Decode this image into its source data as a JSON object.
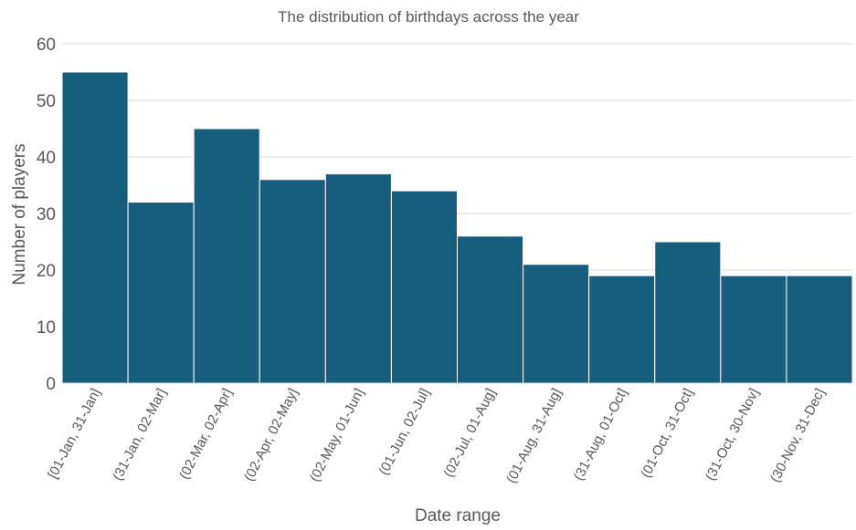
{
  "chart_data": {
    "type": "bar",
    "title": "The distribution of birthdays across the year",
    "xlabel": "Date range",
    "ylabel": "Number of players",
    "categories": [
      "[01-Jan, 31-Jan]",
      "(31-Jan, 02-Mar]",
      "(02-Mar, 02-Apr]",
      "(02-Apr, 02-May]",
      "(02-May, 01-Jun]",
      "(01-Jun, 02-Jul]",
      "(02-Jul, 01-Aug]",
      "(01-Aug, 31-Aug]",
      "(31-Aug, 01-Oct]",
      "(01-Oct, 31-Oct]",
      "(31-Oct, 30-Nov]",
      "(30-Nov, 31-Dec]"
    ],
    "values": [
      55,
      32,
      45,
      36,
      37,
      34,
      26,
      21,
      19,
      25,
      19,
      19
    ],
    "ylim": [
      0,
      60
    ],
    "yticks": [
      "0",
      "10",
      "20",
      "30",
      "40",
      "50",
      "60"
    ],
    "grid": true,
    "bar_color": "#175e7e",
    "grid_color": "#d9d9d9",
    "text_color": "#595959"
  }
}
